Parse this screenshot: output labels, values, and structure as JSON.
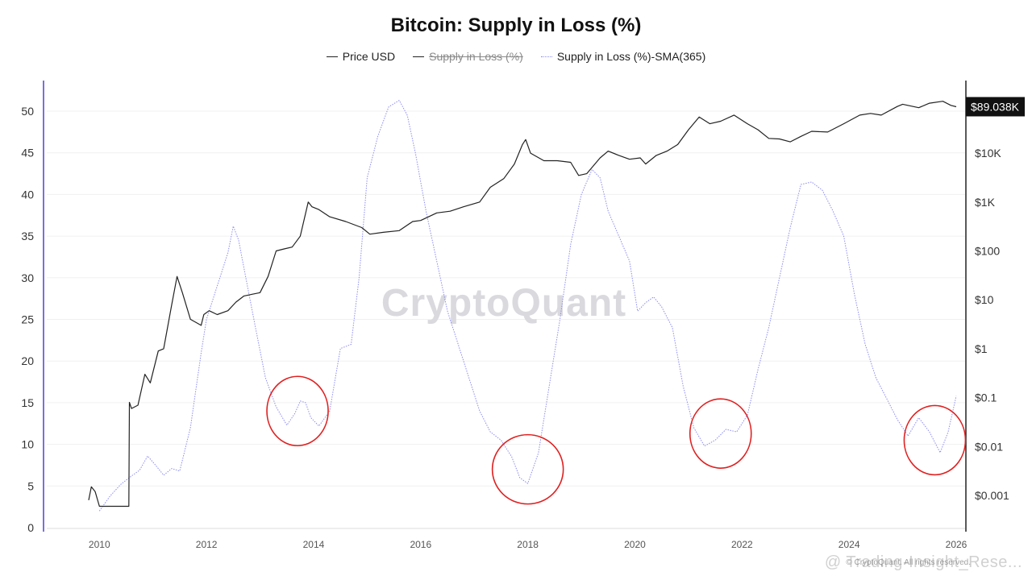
{
  "chart_data": {
    "type": "line",
    "title": "Bitcoin: Supply in Loss (%)",
    "legend": {
      "placement": "top-center",
      "items": [
        {
          "label": "Price USD",
          "style": "solid",
          "color": "#222222",
          "enabled": true
        },
        {
          "label": "Supply in Loss (%)",
          "style": "solid",
          "color": "#222222",
          "enabled": false
        },
        {
          "label": "Supply in Loss (%)-SMA(365)",
          "style": "dotted",
          "color": "#8c8cf0",
          "enabled": true
        }
      ]
    },
    "x_ticks": [
      "2010",
      "2012",
      "2014",
      "2016",
      "2018",
      "2020",
      "2022",
      "2024",
      "2026"
    ],
    "x_range": [
      2009.0,
      2026.2
    ],
    "left_axis": {
      "ticks": [
        "0",
        "5",
        "10",
        "15",
        "20",
        "25",
        "30",
        "35",
        "40",
        "45",
        "50"
      ],
      "range": [
        0,
        50
      ]
    },
    "right_axis": {
      "scale": "log",
      "ticks": [
        "$0.001",
        "$0.01",
        "$0.1",
        "$1",
        "$10",
        "$100",
        "$1K",
        "$10K"
      ],
      "tick_values": [
        0.001,
        0.01,
        0.1,
        1,
        10,
        100,
        1000,
        10000
      ]
    },
    "grid": true,
    "last_value_label": "$89.038K",
    "watermark": "CryptoQuant",
    "copyright": "© CryptoQuant. All rights reserved.",
    "stamp": "@ Trading-Insight_Rese...",
    "series": [
      {
        "name": "Supply in Loss (%)-SMA(365)",
        "axis": "left",
        "color": "#8c8cf0",
        "x": [
          2010.0,
          2010.2,
          2010.4,
          2010.6,
          2010.75,
          2010.9,
          2011.05,
          2011.2,
          2011.35,
          2011.5,
          2011.7,
          2011.9,
          2012.0,
          2012.2,
          2012.4,
          2012.5,
          2012.6,
          2012.75,
          2012.9,
          2013.1,
          2013.3,
          2013.5,
          2013.65,
          2013.75,
          2013.85,
          2013.95,
          2014.1,
          2014.3,
          2014.5,
          2014.7,
          2014.85,
          2015.0,
          2015.2,
          2015.4,
          2015.6,
          2015.75,
          2015.9,
          2016.1,
          2016.3,
          2016.5,
          2016.7,
          2016.9,
          2017.1,
          2017.3,
          2017.5,
          2017.7,
          2017.85,
          2018.0,
          2018.2,
          2018.4,
          2018.6,
          2018.8,
          2019.0,
          2019.2,
          2019.35,
          2019.5,
          2019.7,
          2019.9,
          2020.05,
          2020.2,
          2020.35,
          2020.5,
          2020.7,
          2020.9,
          2021.1,
          2021.3,
          2021.5,
          2021.7,
          2021.9,
          2022.1,
          2022.3,
          2022.5,
          2022.7,
          2022.9,
          2023.1,
          2023.3,
          2023.5,
          2023.7,
          2023.9,
          2024.1,
          2024.3,
          2024.5,
          2024.7,
          2024.9,
          2025.1,
          2025.3,
          2025.5,
          2025.7,
          2025.85,
          2026.0
        ],
        "values": [
          2.0,
          3.8,
          5.2,
          6.2,
          6.9,
          8.6,
          7.5,
          6.3,
          7.1,
          6.8,
          12.0,
          21.0,
          25.0,
          29.0,
          33.0,
          36.2,
          34.5,
          29.5,
          24.5,
          18.0,
          14.5,
          12.3,
          13.7,
          15.2,
          15.0,
          13.2,
          12.2,
          14.0,
          21.5,
          22.0,
          30.0,
          42.0,
          47.0,
          50.5,
          51.3,
          49.5,
          45.0,
          38.0,
          32.0,
          26.0,
          22.0,
          18.0,
          14.0,
          11.5,
          10.5,
          8.5,
          6.0,
          5.3,
          9.0,
          17.0,
          25.0,
          34.0,
          40.0,
          43.0,
          42.0,
          38.0,
          35.0,
          32.0,
          26.0,
          27.0,
          27.7,
          26.5,
          24.0,
          17.0,
          12.0,
          9.8,
          10.5,
          11.8,
          11.5,
          13.5,
          19.0,
          24.0,
          30.0,
          36.0,
          41.2,
          41.5,
          40.5,
          38.0,
          35.0,
          28.0,
          22.0,
          18.0,
          15.5,
          13.0,
          11.0,
          13.2,
          11.5,
          9.0,
          11.5,
          15.8
        ]
      },
      {
        "name": "Price USD",
        "axis": "right",
        "color": "#222222",
        "x": [
          2009.8,
          2009.85,
          2009.92,
          2010.0,
          2010.05,
          2010.3,
          2010.55,
          2010.56,
          2010.6,
          2010.72,
          2010.85,
          2010.95,
          2011.1,
          2011.2,
          2011.35,
          2011.45,
          2011.55,
          2011.7,
          2011.9,
          2011.95,
          2012.05,
          2012.2,
          2012.4,
          2012.55,
          2012.7,
          2012.85,
          2013.0,
          2013.15,
          2013.3,
          2013.45,
          2013.6,
          2013.75,
          2013.9,
          2013.97,
          2014.1,
          2014.3,
          2014.6,
          2014.9,
          2015.05,
          2015.3,
          2015.6,
          2015.85,
          2016.0,
          2016.3,
          2016.55,
          2016.8,
          2017.1,
          2017.3,
          2017.55,
          2017.75,
          2017.9,
          2017.96,
          2018.05,
          2018.3,
          2018.55,
          2018.8,
          2018.95,
          2019.1,
          2019.35,
          2019.5,
          2019.7,
          2019.9,
          2020.1,
          2020.2,
          2020.4,
          2020.6,
          2020.8,
          2021.0,
          2021.2,
          2021.4,
          2021.6,
          2021.85,
          2022.1,
          2022.3,
          2022.5,
          2022.7,
          2022.9,
          2023.1,
          2023.3,
          2023.6,
          2023.9,
          2024.2,
          2024.4,
          2024.6,
          2024.9,
          2025.0,
          2025.3,
          2025.5,
          2025.75,
          2025.9,
          2026.0
        ],
        "values": [
          0.0008,
          0.0015,
          0.0012,
          0.0006,
          0.0006,
          0.0006,
          0.0006,
          0.08,
          0.06,
          0.07,
          0.3,
          0.2,
          0.9,
          1.0,
          8,
          30,
          14,
          4,
          3,
          5,
          6,
          5,
          6,
          9,
          12,
          13,
          14,
          30,
          100,
          110,
          120,
          200,
          1000,
          800,
          700,
          500,
          400,
          300,
          220,
          240,
          260,
          400,
          420,
          600,
          650,
          800,
          1000,
          2000,
          3000,
          6000,
          15000,
          19000,
          10000,
          7000,
          7000,
          6500,
          3500,
          3800,
          8000,
          11000,
          9000,
          7500,
          8000,
          6000,
          9000,
          11000,
          15000,
          30000,
          55000,
          40000,
          45000,
          60000,
          40000,
          30000,
          20000,
          19500,
          17000,
          22000,
          28000,
          27000,
          40000,
          60000,
          65000,
          60000,
          90000,
          100000,
          85000,
          105000,
          115000,
          95000,
          89038
        ]
      }
    ],
    "highlights": [
      {
        "year": 2013.7,
        "value": 14.0,
        "label": ""
      },
      {
        "year": 2018.0,
        "value": 7.0,
        "label": ""
      },
      {
        "year": 2021.6,
        "value": 11.3,
        "label": ""
      },
      {
        "year": 2025.6,
        "value": 10.5,
        "label": ""
      }
    ]
  }
}
